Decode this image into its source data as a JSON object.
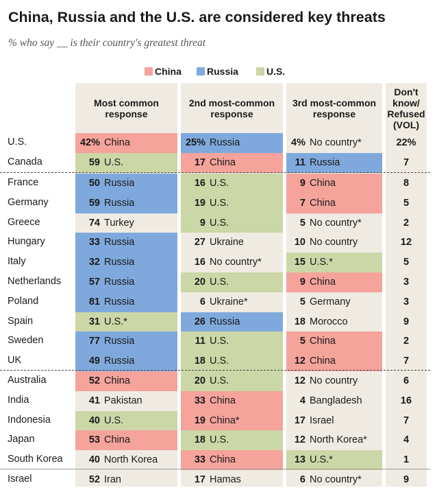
{
  "chart_data": {
    "type": "table",
    "title": "China, Russia and the U.S. are considered key threats",
    "subtitle": "% who say __ is their country's greatest threat",
    "legend": [
      {
        "label": "China",
        "color": "#f5a39b"
      },
      {
        "label": "Russia",
        "color": "#7fa9dd"
      },
      {
        "label": "U.S.",
        "color": "#cbd7a6"
      }
    ],
    "columns": [
      "Most common response",
      "2nd most-common response",
      "3rd most-common response",
      "Don't know/ Refused (VOL)"
    ],
    "groups": [
      [
        {
          "country": "U.S.",
          "r1": {
            "v": "42%",
            "t": "China"
          },
          "r2": {
            "v": "25%",
            "t": "Russia"
          },
          "r3": {
            "v": "4%",
            "t": "No country*"
          },
          "dk": "22%"
        },
        {
          "country": "Canada",
          "r1": {
            "v": "59",
            "t": "U.S."
          },
          "r2": {
            "v": "17",
            "t": "China"
          },
          "r3": {
            "v": "11",
            "t": "Russia"
          },
          "dk": "7"
        }
      ],
      [
        {
          "country": "France",
          "r1": {
            "v": "50",
            "t": "Russia"
          },
          "r2": {
            "v": "16",
            "t": "U.S."
          },
          "r3": {
            "v": "9",
            "t": "China"
          },
          "dk": "8"
        },
        {
          "country": "Germany",
          "r1": {
            "v": "59",
            "t": "Russia"
          },
          "r2": {
            "v": "19",
            "t": "U.S."
          },
          "r3": {
            "v": "7",
            "t": "China"
          },
          "dk": "5"
        },
        {
          "country": "Greece",
          "r1": {
            "v": "74",
            "t": "Turkey"
          },
          "r2": {
            "v": "9",
            "t": "U.S."
          },
          "r3": {
            "v": "5",
            "t": "No country*"
          },
          "dk": "2"
        },
        {
          "country": "Hungary",
          "r1": {
            "v": "33",
            "t": "Russia"
          },
          "r2": {
            "v": "27",
            "t": "Ukraine"
          },
          "r3": {
            "v": "10",
            "t": "No country"
          },
          "dk": "12"
        },
        {
          "country": "Italy",
          "r1": {
            "v": "32",
            "t": "Russia"
          },
          "r2": {
            "v": "16",
            "t": "No country*"
          },
          "r3": {
            "v": "15",
            "t": "U.S.*"
          },
          "dk": "5"
        },
        {
          "country": "Netherlands",
          "r1": {
            "v": "57",
            "t": "Russia"
          },
          "r2": {
            "v": "20",
            "t": "U.S."
          },
          "r3": {
            "v": "9",
            "t": "China"
          },
          "dk": "3"
        },
        {
          "country": "Poland",
          "r1": {
            "v": "81",
            "t": "Russia"
          },
          "r2": {
            "v": "6",
            "t": "Ukraine*"
          },
          "r3": {
            "v": "5",
            "t": "Germany"
          },
          "dk": "3"
        },
        {
          "country": "Spain",
          "r1": {
            "v": "31",
            "t": "U.S.*"
          },
          "r2": {
            "v": "26",
            "t": "Russia"
          },
          "r3": {
            "v": "18",
            "t": "Morocco"
          },
          "dk": "9"
        },
        {
          "country": "Sweden",
          "r1": {
            "v": "77",
            "t": "Russia"
          },
          "r2": {
            "v": "11",
            "t": "U.S."
          },
          "r3": {
            "v": "5",
            "t": "China"
          },
          "dk": "2"
        },
        {
          "country": "UK",
          "r1": {
            "v": "49",
            "t": "Russia"
          },
          "r2": {
            "v": "18",
            "t": "U.S."
          },
          "r3": {
            "v": "12",
            "t": "China"
          },
          "dk": "7"
        }
      ],
      [
        {
          "country": "Australia",
          "r1": {
            "v": "52",
            "t": "China"
          },
          "r2": {
            "v": "20",
            "t": "U.S."
          },
          "r3": {
            "v": "12",
            "t": "No country"
          },
          "dk": "6"
        },
        {
          "country": "India",
          "r1": {
            "v": "41",
            "t": "Pakistan"
          },
          "r2": {
            "v": "33",
            "t": "China"
          },
          "r3": {
            "v": "4",
            "t": "Bangladesh"
          },
          "dk": "16"
        },
        {
          "country": "Indonesia",
          "r1": {
            "v": "40",
            "t": "U.S."
          },
          "r2": {
            "v": "19",
            "t": "China*"
          },
          "r3": {
            "v": "17",
            "t": "Israel"
          },
          "dk": "7"
        },
        {
          "country": "Japan",
          "r1": {
            "v": "53",
            "t": "China"
          },
          "r2": {
            "v": "18",
            "t": "U.S."
          },
          "r3": {
            "v": "12",
            "t": "North Korea*"
          },
          "dk": "4"
        },
        {
          "country": "South Korea",
          "r1": {
            "v": "40",
            "t": "North Korea"
          },
          "r2": {
            "v": "33",
            "t": "China"
          },
          "r3": {
            "v": "13",
            "t": "U.S.*"
          },
          "dk": "1"
        }
      ],
      [
        {
          "country": "Israel",
          "r1": {
            "v": "52",
            "t": "Iran"
          },
          "r2": {
            "v": "17",
            "t": "Hamas"
          },
          "r3": {
            "v": "6",
            "t": "No country*"
          },
          "dk": "9"
        }
      ]
    ]
  }
}
